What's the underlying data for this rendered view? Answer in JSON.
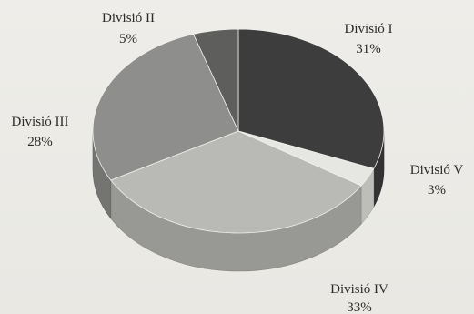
{
  "chart_data": {
    "type": "pie",
    "title": "",
    "three_d": true,
    "start_angle_deg": -90,
    "direction": "clockwise",
    "slices": [
      {
        "name": "Divisió I",
        "value": 31,
        "label_pct": "31%",
        "color": "#3d3d3d"
      },
      {
        "name": "Divisió V",
        "value": 3,
        "label_pct": "3%",
        "color": "#e6e6e3"
      },
      {
        "name": "Divisió IV",
        "value": 33,
        "label_pct": "33%",
        "color": "#b9b9b6"
      },
      {
        "name": "Divisió III",
        "value": 28,
        "label_pct": "28%",
        "color": "#8e8e8c"
      },
      {
        "name": "Divisió II",
        "value": 5,
        "label_pct": "5%",
        "color": "#5e5e5d"
      }
    ]
  }
}
